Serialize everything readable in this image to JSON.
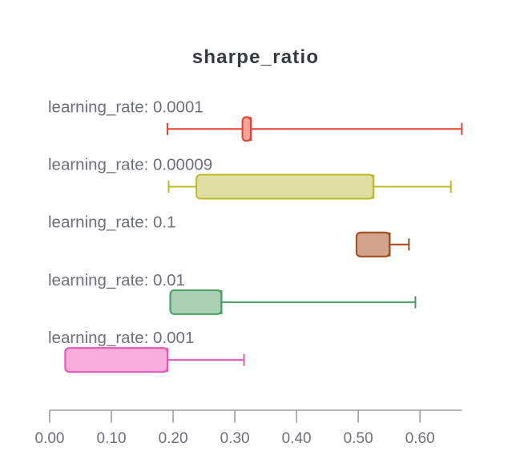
{
  "chart_data": {
    "type": "box",
    "orientation": "horizontal",
    "title": "sharpe_ratio",
    "series": [
      {
        "label": "learning_rate: 0.0001",
        "min": 0.1908,
        "q1": 0.3123,
        "median": 0.3258,
        "q3": 0.3258,
        "max": 0.6678,
        "stroke": "#e6402e",
        "fill": "#f6a49c"
      },
      {
        "label": "learning_rate: 0.00009",
        "min": 0.1928,
        "q1": 0.2378,
        "median": 0.5244,
        "q3": 0.5244,
        "max": 0.6501,
        "stroke": "#bcba24",
        "fill": "#e0e0a5"
      },
      {
        "label": "learning_rate: 0.1",
        "min": 0.4971,
        "q1": 0.4971,
        "median": 0.5507,
        "q3": 0.5507,
        "max": 0.5821,
        "stroke": "#a34816",
        "fill": "#d2a48e"
      },
      {
        "label": "learning_rate: 0.01",
        "min": 0.1954,
        "q1": 0.1954,
        "median": 0.2781,
        "q3": 0.2781,
        "max": 0.5926,
        "stroke": "#41a060",
        "fill": "#aacfb3"
      },
      {
        "label": "learning_rate: 0.001",
        "min": 0.0251,
        "q1": 0.0251,
        "median": 0.1908,
        "q3": 0.1908,
        "max": 0.3149,
        "stroke": "#ee51b6",
        "fill": "#f8aeda"
      }
    ],
    "xlabel": "",
    "ylabel": "",
    "xaxis": {
      "min": 0,
      "max": 0.6678,
      "ticks": [
        0.0,
        0.1,
        0.2,
        0.3,
        0.4,
        0.5,
        0.6
      ],
      "tick_labels": [
        "0.00",
        "0.10",
        "0.20",
        "0.30",
        "0.40",
        "0.50",
        "0.60"
      ]
    },
    "grid": false,
    "legend": false,
    "colors": {
      "title": "#36393e",
      "category_label": "#6e7079",
      "tick_label": "#6e7079",
      "axis_line": "#9e9e9e",
      "background": "#ffffff"
    }
  }
}
